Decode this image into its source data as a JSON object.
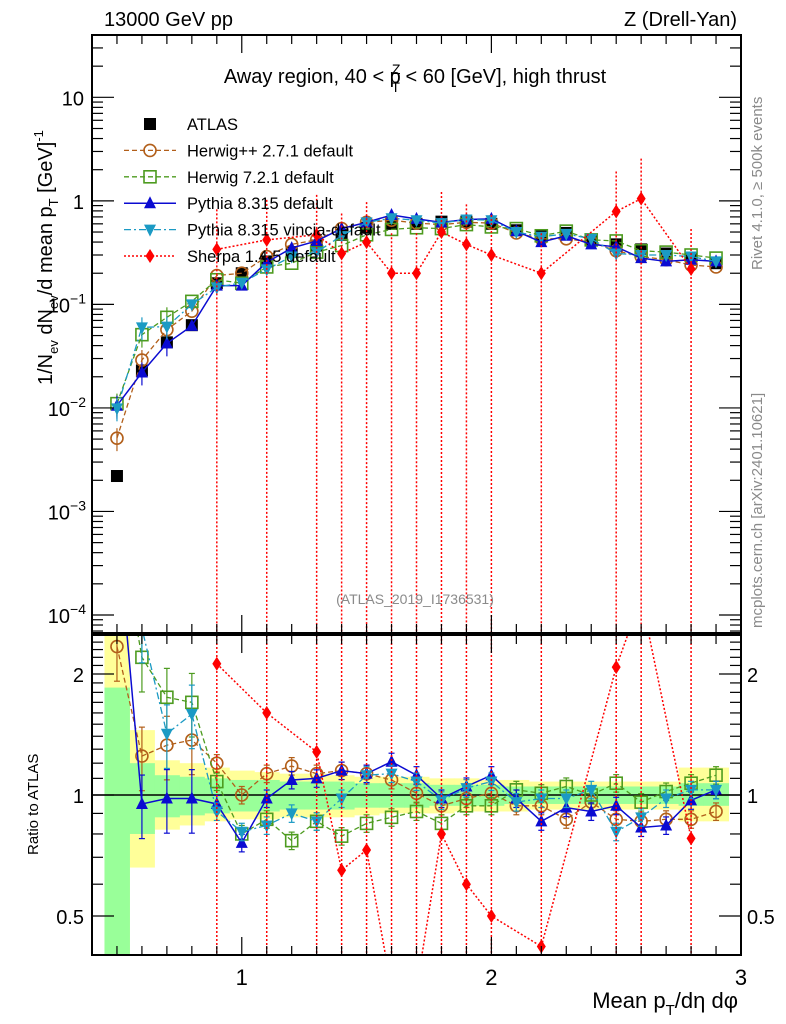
{
  "header": {
    "left": "13000 GeV pp",
    "right": "Z (Drell-Yan)"
  },
  "side_labels": {
    "rivet": "Rivet 4.1.0, ≥ 500k events",
    "mcplots": "mcplots.cern.ch [arXiv:2401.10621]"
  },
  "chart_data": [
    {
      "type": "line",
      "panel": "main",
      "title": "Away region, 40 < p_T^Z < 60 [GeV], high thrust",
      "title_parts": {
        "pre": "Away region, 40 < p",
        "sup": "Z",
        "sub": "T",
        "post": " < 60 [GeV], high thrust"
      },
      "analysis_label": "(ATLAS_2019_I1736531)",
      "ylabel": "1/N_ev dN_ev/d mean p_T [GeV]^-1",
      "ylabel_parts": {
        "a": "1/N",
        "a_sub": "ev",
        "b": " dN",
        "b_sub": "ev",
        "c": "/d mean p",
        "c_sub": "T",
        "d": " [GeV]",
        "d_sup": "-1"
      },
      "xlabel": "Mean p_T/dη dφ",
      "yscale": "log",
      "xlim": [
        0.4,
        3.0
      ],
      "ylim": [
        6.7e-05,
        40
      ],
      "y_ticks": [
        {
          "v": 10,
          "label": "10"
        },
        {
          "v": 1,
          "label": "1"
        },
        {
          "v": 0.1,
          "label": "10",
          "sup": "−1"
        },
        {
          "v": 0.01,
          "label": "10",
          "sup": "−2"
        },
        {
          "v": 0.001,
          "label": "10",
          "sup": "−3"
        },
        {
          "v": 0.0001,
          "label": "10",
          "sup": "−4"
        }
      ],
      "legend_position": "top-left",
      "x": [
        0.5,
        0.6,
        0.7,
        0.8,
        0.9,
        1.0,
        1.1,
        1.2,
        1.3,
        1.4,
        1.5,
        1.6,
        1.7,
        1.8,
        1.9,
        2.0,
        2.1,
        2.2,
        2.3,
        2.4,
        2.5,
        2.6,
        2.7,
        2.8,
        2.9
      ],
      "series": [
        {
          "name": "ATLAS",
          "color": "#000000",
          "marker": "square-filled",
          "dash": "none",
          "values": [
            0.0022,
            0.023,
            0.043,
            0.063,
            0.16,
            0.2,
            0.26,
            0.32,
            0.37,
            0.47,
            0.55,
            0.6,
            0.6,
            0.63,
            0.63,
            0.6,
            0.52,
            0.46,
            0.49,
            0.42,
            0.38,
            0.34,
            0.31,
            0.28,
            0.25
          ]
        },
        {
          "name": "Herwig++ 2.7.1 default",
          "color": "#b25f1a",
          "marker": "circle-open",
          "dash": "dashed",
          "values": [
            0.0051,
            0.029,
            0.057,
            0.086,
            0.19,
            0.2,
            0.29,
            0.38,
            0.42,
            0.54,
            0.62,
            0.65,
            0.61,
            0.59,
            0.62,
            0.61,
            0.49,
            0.43,
            0.43,
            0.4,
            0.33,
            0.29,
            0.27,
            0.24,
            0.23
          ]
        },
        {
          "name": "Herwig 7.2.1 default",
          "color": "#4d9b1f",
          "marker": "square-open",
          "dash": "dashed",
          "values": [
            0.011,
            0.051,
            0.075,
            0.107,
            0.173,
            0.16,
            0.23,
            0.25,
            0.32,
            0.37,
            0.47,
            0.53,
            0.55,
            0.54,
            0.59,
            0.56,
            0.54,
            0.46,
            0.51,
            0.42,
            0.41,
            0.33,
            0.32,
            0.3,
            0.28
          ]
        },
        {
          "name": "Pythia 8.315 default",
          "color": "#0b0bd1",
          "marker": "triangle-up-filled",
          "dash": "solid",
          "values": [
            0.0105,
            0.022,
            0.042,
            0.062,
            0.152,
            0.152,
            0.255,
            0.35,
            0.41,
            0.54,
            0.62,
            0.73,
            0.67,
            0.62,
            0.66,
            0.67,
            0.51,
            0.4,
            0.46,
            0.38,
            0.36,
            0.28,
            0.26,
            0.27,
            0.26
          ]
        },
        {
          "name": "Pythia 8.315 vincia-default",
          "color": "#1b9ac4",
          "marker": "triangle-down-filled",
          "dash": "dashdot",
          "values": [
            0.0099,
            0.06,
            0.061,
            0.1,
            0.146,
            0.162,
            0.218,
            0.29,
            0.32,
            0.46,
            0.62,
            0.68,
            0.65,
            0.61,
            0.66,
            0.65,
            0.5,
            0.45,
            0.48,
            0.43,
            0.31,
            0.3,
            0.3,
            0.29,
            0.26
          ]
        },
        {
          "name": "Sherpa 1.4.5 default",
          "color": "#ff0000",
          "marker": "diamond-filled",
          "dash": "dotted",
          "values": [
            null,
            null,
            null,
            null,
            0.34,
            null,
            0.42,
            null,
            0.47,
            0.31,
            0.4,
            0.2,
            0.2,
            0.5,
            0.38,
            0.3,
            null,
            0.2,
            null,
            null,
            0.79,
            1.05,
            null,
            0.22,
            null
          ],
          "bottom_err_to_axis": true
        }
      ]
    },
    {
      "type": "line",
      "panel": "ratio",
      "ylabel": "Ratio to ATLAS",
      "xlabel": "Mean p_T/dη dφ",
      "xlabel_parts": {
        "a": "Mean p",
        "sub": "T",
        "b": "/dη dφ"
      },
      "yscale": "log",
      "xlim": [
        0.4,
        3.0
      ],
      "ylim": [
        0.4,
        2.5
      ],
      "x_ticks": [
        {
          "v": 1,
          "label": "1"
        },
        {
          "v": 2,
          "label": "2"
        },
        {
          "v": 3,
          "label": "3"
        }
      ],
      "y_ticks": [
        {
          "v": 0.5,
          "label": "0.5"
        },
        {
          "v": 1,
          "label": "1"
        },
        {
          "v": 2,
          "label": "2"
        }
      ],
      "reference_line": 1,
      "x": [
        0.5,
        0.6,
        0.7,
        0.8,
        0.9,
        1.0,
        1.1,
        1.2,
        1.3,
        1.4,
        1.5,
        1.6,
        1.7,
        1.8,
        1.9,
        2.0,
        2.1,
        2.2,
        2.3,
        2.4,
        2.5,
        2.6,
        2.7,
        2.8,
        2.9
      ],
      "bands": {
        "total_color": "#ffff99",
        "stat_color": "#99ff99",
        "total": [
          [
            0.3,
            3.0
          ],
          [
            0.66,
            1.45
          ],
          [
            0.82,
            1.22
          ],
          [
            0.84,
            1.2
          ],
          [
            0.86,
            1.17
          ],
          [
            0.87,
            1.15
          ],
          [
            0.87,
            1.14
          ],
          [
            0.88,
            1.13
          ],
          [
            0.88,
            1.13
          ],
          [
            0.88,
            1.12
          ],
          [
            0.89,
            1.11
          ],
          [
            0.9,
            1.11
          ],
          [
            0.9,
            1.11
          ],
          [
            0.9,
            1.1
          ],
          [
            0.91,
            1.1
          ],
          [
            0.91,
            1.09
          ],
          [
            0.91,
            1.09
          ],
          [
            0.92,
            1.08
          ],
          [
            0.92,
            1.08
          ],
          [
            0.92,
            1.08
          ],
          [
            0.92,
            1.08
          ],
          [
            0.92,
            1.08
          ],
          [
            0.92,
            1.08
          ],
          [
            0.86,
            1.17
          ],
          [
            0.86,
            1.17
          ]
        ],
        "stat": [
          [
            0.3,
            1.85
          ],
          [
            0.8,
            1.2
          ],
          [
            0.88,
            1.12
          ],
          [
            0.89,
            1.11
          ],
          [
            0.9,
            1.1
          ],
          [
            0.91,
            1.09
          ],
          [
            0.91,
            1.09
          ],
          [
            0.92,
            1.08
          ],
          [
            0.92,
            1.08
          ],
          [
            0.92,
            1.08
          ],
          [
            0.93,
            1.07
          ],
          [
            0.93,
            1.07
          ],
          [
            0.93,
            1.07
          ],
          [
            0.94,
            1.06
          ],
          [
            0.94,
            1.06
          ],
          [
            0.94,
            1.06
          ],
          [
            0.95,
            1.05
          ],
          [
            0.95,
            1.05
          ],
          [
            0.95,
            1.05
          ],
          [
            0.95,
            1.05
          ],
          [
            0.95,
            1.05
          ],
          [
            0.95,
            1.05
          ],
          [
            0.95,
            1.05
          ],
          [
            0.94,
            1.07
          ],
          [
            0.94,
            1.07
          ]
        ]
      },
      "series": [
        {
          "name": "Herwig++ 2.7.1 default",
          "values": [
            2.34,
            1.25,
            1.33,
            1.37,
            1.2,
            1.0,
            1.13,
            1.18,
            1.13,
            1.15,
            1.13,
            1.09,
            1.01,
            0.94,
            0.98,
            1.01,
            0.94,
            0.94,
            0.87,
            0.96,
            0.87,
            0.86,
            0.87,
            0.87,
            0.91
          ]
        },
        {
          "name": "Herwig 7.2.1 default",
          "values": [
            5.0,
            2.2,
            1.75,
            1.7,
            1.08,
            0.8,
            0.87,
            0.77,
            0.86,
            0.79,
            0.85,
            0.88,
            0.91,
            0.85,
            0.94,
            0.94,
            1.03,
            1.01,
            1.05,
            1.0,
            1.07,
            0.96,
            1.02,
            1.07,
            1.12
          ]
        },
        {
          "name": "Pythia 8.315 default",
          "values": [
            4.8,
            0.95,
            0.98,
            0.98,
            0.95,
            0.76,
            0.98,
            1.09,
            1.1,
            1.15,
            1.13,
            1.21,
            1.12,
            0.98,
            1.05,
            1.12,
            0.98,
            0.86,
            0.93,
            0.91,
            0.94,
            0.83,
            0.84,
            0.97,
            1.03
          ]
        },
        {
          "name": "Pythia 8.315 vincia-default",
          "values": [
            4.5,
            2.6,
            1.42,
            1.59,
            0.91,
            0.81,
            0.84,
            0.9,
            0.86,
            0.98,
            1.12,
            1.13,
            1.08,
            0.97,
            1.04,
            1.08,
            0.96,
            0.98,
            0.98,
            1.03,
            0.81,
            0.88,
            0.98,
            1.03,
            1.03
          ]
        },
        {
          "name": "Sherpa 1.4.5 default",
          "values": [
            null,
            null,
            null,
            null,
            2.12,
            null,
            1.6,
            null,
            1.28,
            0.65,
            0.73,
            0.33,
            0.33,
            0.8,
            0.6,
            0.5,
            null,
            0.42,
            null,
            null,
            2.08,
            3.1,
            null,
            0.78,
            null
          ]
        }
      ]
    }
  ]
}
